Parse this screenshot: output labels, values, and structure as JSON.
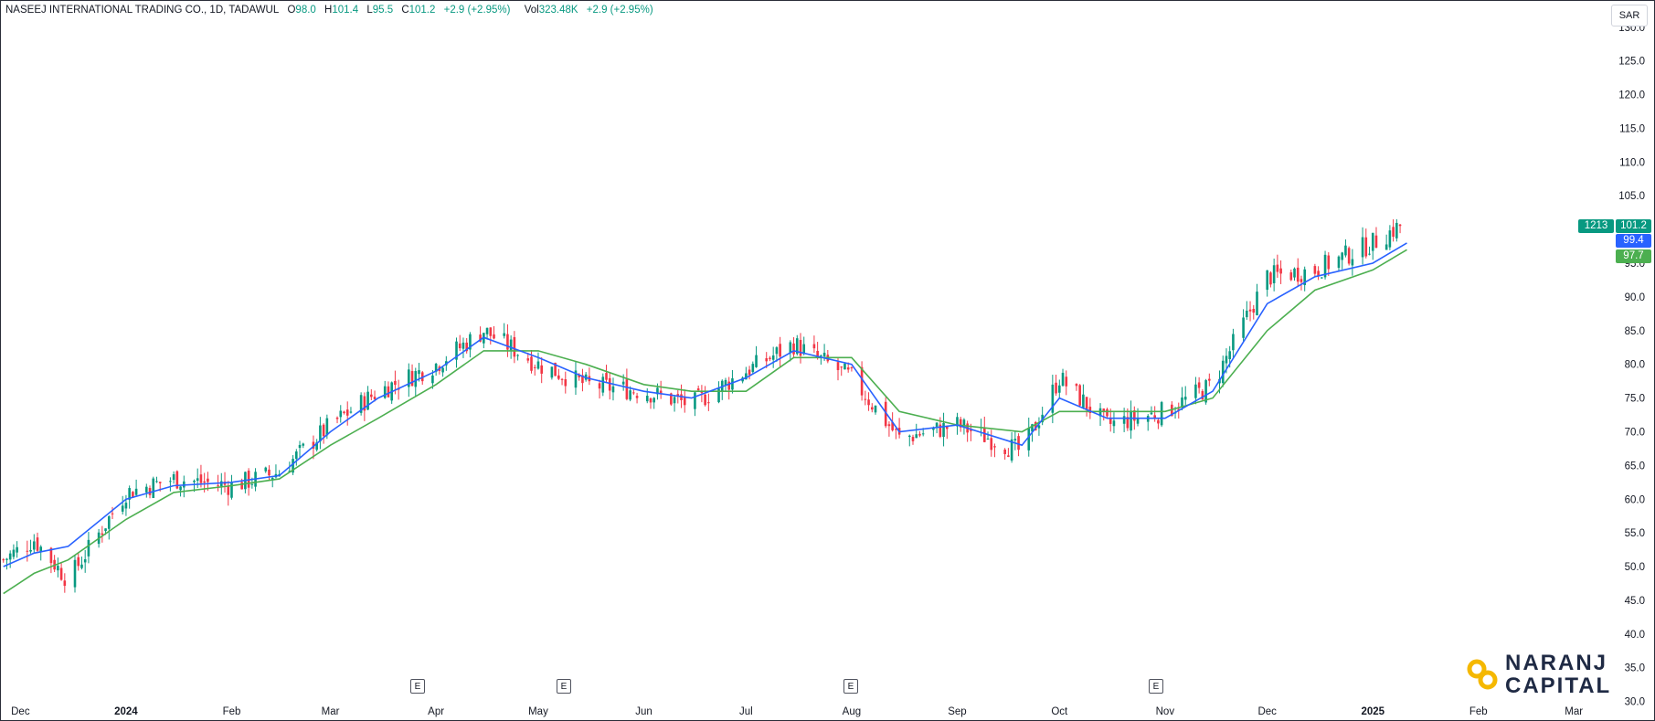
{
  "header": {
    "symbol": "NASEEJ INTERNATIONAL TRADING CO., 1D, TADAWUL",
    "open_label": "O",
    "open": "98.0",
    "high_label": "H",
    "high": "101.4",
    "low_label": "L",
    "low": "95.5",
    "close_label": "C",
    "close": "101.2",
    "change": "+2.9 (+2.95%)",
    "vol_label": "Vol",
    "volume": "323.48K",
    "vol_change": "+2.9 (+2.95%)"
  },
  "currency": "SAR",
  "tags": {
    "symbol_code": "1213",
    "last_price": "101.2",
    "ema_fast": "99.4",
    "ema_slow": "97.7"
  },
  "events": [
    "E",
    "E",
    "E",
    "E"
  ],
  "logo": {
    "line1": "NARANJ",
    "line2": "CAPITAL"
  },
  "colors": {
    "up": "#089981",
    "down": "#f23645",
    "ema_fast": "#2962ff",
    "ema_slow": "#4caf50",
    "text": "#131722",
    "tag_fast": "#2962ff",
    "tag_slow": "#4caf50",
    "tag_price": "#089981"
  },
  "chart_data": {
    "type": "line",
    "title": "",
    "y_axis": {
      "ticks": [
        "130.0",
        "125.0",
        "120.0",
        "115.0",
        "110.0",
        "105.0",
        "100.0",
        "95.0",
        "90.0",
        "85.0",
        "80.0",
        "75.0",
        "70.0",
        "65.0",
        "60.0",
        "55.0",
        "50.0",
        "45.0",
        "40.0",
        "35.0",
        "30.0"
      ],
      "ylim": [
        29,
        132
      ]
    },
    "x_axis": {
      "ticks": [
        "Dec",
        "2024",
        "Feb",
        "Mar",
        "Apr",
        "May",
        "Jun",
        "Jul",
        "Aug",
        "Sep",
        "Oct",
        "Nov",
        "Dec",
        "2025",
        "Feb",
        "Mar"
      ]
    },
    "grid": false,
    "series": [
      {
        "name": "",
        "x": [
          "2023-11-26",
          "2023-12-05",
          "2023-12-15",
          "2024-01-01",
          "2024-01-15",
          "2024-02-01",
          "2024-02-15",
          "2024-03-01",
          "2024-03-15",
          "2024-04-01",
          "2024-04-15",
          "2024-05-01",
          "2024-05-15",
          "2024-06-01",
          "2024-06-15",
          "2024-07-01",
          "2024-07-15",
          "2024-08-01",
          "2024-08-15",
          "2024-09-01",
          "2024-09-20",
          "2024-10-01",
          "2024-10-15",
          "2024-11-01",
          "2024-11-15",
          "2024-12-01",
          "2024-12-15",
          "2025-01-01",
          "2025-01-11"
        ],
        "values": [
          50,
          52,
          53,
          60,
          62,
          62.5,
          63.5,
          70,
          75,
          79,
          84,
          81,
          78,
          76,
          75,
          78,
          82,
          80,
          70,
          71,
          68,
          75,
          72,
          72,
          76,
          89,
          93,
          95,
          98
        ]
      },
      {
        "name": "",
        "x": [
          "2023-11-26",
          "2023-12-05",
          "2023-12-15",
          "2024-01-01",
          "2024-01-15",
          "2024-02-01",
          "2024-02-15",
          "2024-03-01",
          "2024-03-15",
          "2024-04-01",
          "2024-04-15",
          "2024-05-01",
          "2024-05-15",
          "2024-06-01",
          "2024-06-15",
          "2024-07-01",
          "2024-07-15",
          "2024-08-01",
          "2024-08-15",
          "2024-09-01",
          "2024-09-20",
          "2024-10-01",
          "2024-10-15",
          "2024-11-01",
          "2024-11-15",
          "2024-12-01",
          "2024-12-15",
          "2025-01-01",
          "2025-01-11"
        ],
        "values": [
          46,
          49,
          51,
          57,
          61,
          62,
          63,
          68,
          72,
          77,
          82,
          82,
          80,
          77,
          76,
          76,
          81,
          81,
          73,
          71,
          70,
          73,
          73,
          73,
          75,
          85,
          91,
          94,
          97
        ]
      },
      {
        "name": "",
        "x": [
          "2023-11-26",
          "2023-12-05",
          "2023-12-15",
          "2024-01-01",
          "2024-01-15",
          "2024-02-01",
          "2024-02-15",
          "2024-03-01",
          "2024-03-15",
          "2024-04-01",
          "2024-04-15",
          "2024-05-01",
          "2024-05-15",
          "2024-06-01",
          "2024-06-15",
          "2024-07-01",
          "2024-07-15",
          "2024-08-01",
          "2024-08-15",
          "2024-09-01",
          "2024-09-20",
          "2024-10-01",
          "2024-10-15",
          "2024-11-01",
          "2024-11-15",
          "2024-12-01",
          "2024-12-15",
          "2025-01-01",
          "2025-01-11"
        ],
        "values": [
          51,
          54,
          48,
          61,
          63,
          62,
          64,
          71,
          76,
          80,
          85,
          80,
          77,
          76,
          74,
          79,
          83,
          78,
          69,
          71,
          67,
          78,
          71,
          73,
          77,
          93,
          94,
          98,
          101.2
        ]
      }
    ]
  }
}
